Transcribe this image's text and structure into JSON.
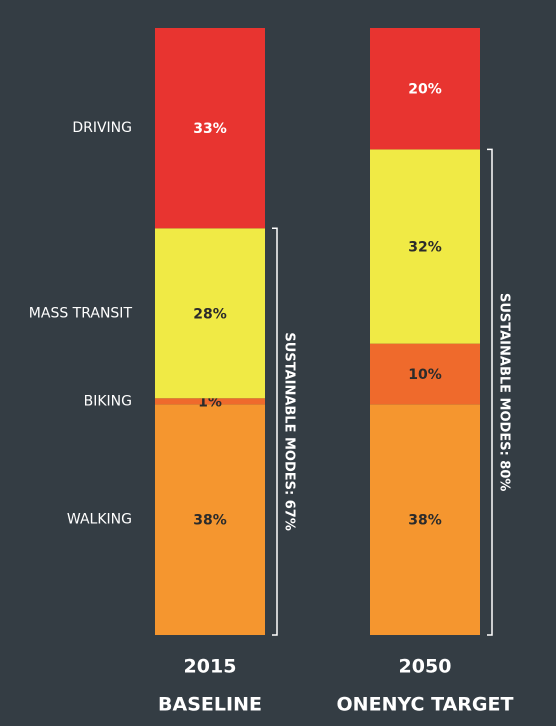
{
  "chart_data": {
    "type": "stacked_bar",
    "categories": [
      "2015",
      "2050"
    ],
    "category_subtitles": [
      "BASELINE",
      "ONENYC TARGET"
    ],
    "ylim": [
      0,
      100
    ],
    "series": [
      {
        "name": "WALKING",
        "color": "#f5962f",
        "label_color": "#2b2b2b",
        "values": [
          38,
          38
        ],
        "value_labels": [
          "38%",
          "38%"
        ]
      },
      {
        "name": "BIKING",
        "color": "#ef6a2c",
        "label_color": "#2b2b2b",
        "values": [
          1,
          10
        ],
        "value_labels": [
          "1%",
          "10%"
        ]
      },
      {
        "name": "MASS TRANSIT",
        "color": "#f0ea45",
        "label_color": "#2b2b2b",
        "values": [
          28,
          32
        ],
        "value_labels": [
          "28%",
          "32%"
        ]
      },
      {
        "name": "DRIVING",
        "color": "#e83430",
        "label_color": "#ffffff",
        "values": [
          33,
          20
        ],
        "value_labels": [
          "33%",
          "20%"
        ]
      }
    ],
    "annotations": [
      "SUSTAINABLE MODES: 67%",
      "SUSTAINABLE MODES: 80%"
    ]
  }
}
